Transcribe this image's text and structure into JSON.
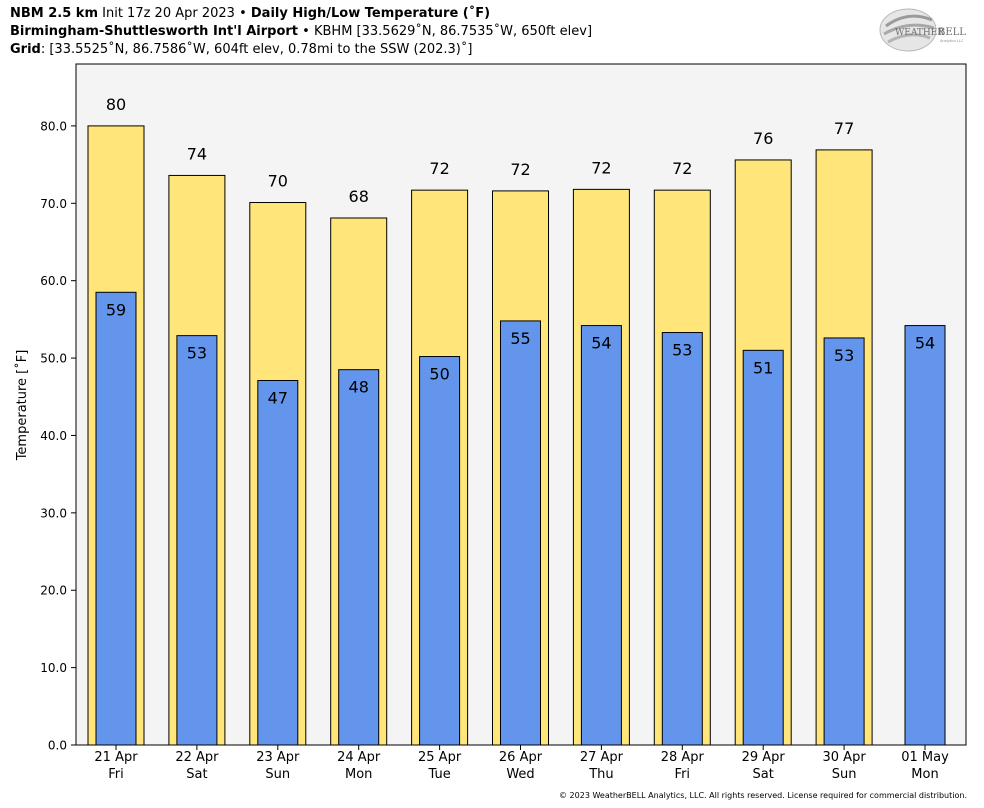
{
  "header": {
    "line1": {
      "model": "NBM 2.5 km",
      "init": "Init 17z 20 Apr 2023",
      "sep": "•",
      "product": "Daily High/Low Temperature (˚F)"
    },
    "line2": {
      "station": "Birmingham-Shuttlesworth Int'l Airport",
      "sep": "•",
      "details": "KBHM [33.5629˚N, 86.7535˚W, 650ft elev]"
    },
    "line3": {
      "label": "Grid",
      "details": ": [33.5525˚N, 86.7586˚W, 604ft elev, 0.78mi to the SSW (202.3)˚]"
    }
  },
  "logo": {
    "text_main": "WEATHER",
    "text_bold": "BELL",
    "text_small": "Analytics LLC"
  },
  "copyright": "© 2023 WeatherBELL Analytics, LLC. All rights reserved. License required for commercial distribution.",
  "colors": {
    "high": "#ffe57a",
    "low": "#6495ed",
    "plot_bg": "#f4f4f4",
    "edge": "#000000"
  },
  "chart_data": {
    "type": "bar",
    "ylabel": "Temperature [˚F]",
    "ylim": [
      0,
      88
    ],
    "yticks": [
      0,
      10,
      20,
      30,
      40,
      50,
      60,
      70,
      80
    ],
    "ytick_labels": [
      "0.0",
      "10.0",
      "20.0",
      "30.0",
      "40.0",
      "50.0",
      "60.0",
      "70.0",
      "80.0"
    ],
    "categories": [
      "21 Apr",
      "22 Apr",
      "23 Apr",
      "24 Apr",
      "25 Apr",
      "26 Apr",
      "27 Apr",
      "28 Apr",
      "29 Apr",
      "30 Apr",
      "01 May"
    ],
    "days": [
      "Fri",
      "Sat",
      "Sun",
      "Mon",
      "Tue",
      "Wed",
      "Thu",
      "Fri",
      "Sat",
      "Sun",
      "Mon"
    ],
    "series": [
      {
        "key": "high",
        "values": [
          80.0,
          73.6,
          70.1,
          68.1,
          71.7,
          71.6,
          71.8,
          71.7,
          75.6,
          76.9,
          null
        ],
        "labels": [
          "80",
          "74",
          "70",
          "68",
          "72",
          "72",
          "72",
          "72",
          "76",
          "77",
          ""
        ]
      },
      {
        "key": "low",
        "values": [
          58.5,
          52.9,
          47.1,
          48.5,
          50.2,
          54.8,
          54.2,
          53.3,
          51.0,
          52.6,
          54.2
        ],
        "labels": [
          "59",
          "53",
          "47",
          "48",
          "50",
          "55",
          "54",
          "53",
          "51",
          "53",
          "54"
        ]
      }
    ],
    "grid": false
  }
}
